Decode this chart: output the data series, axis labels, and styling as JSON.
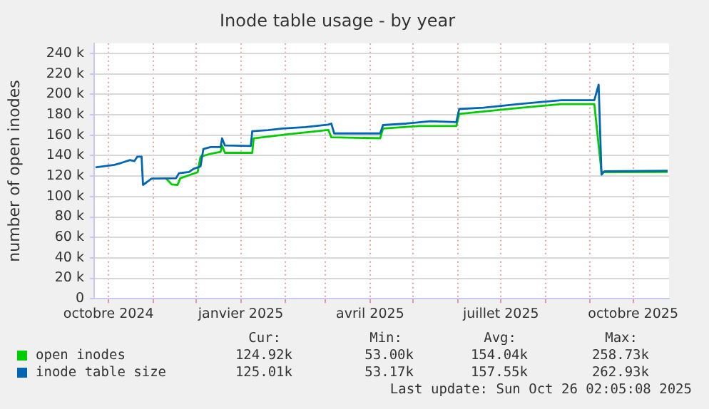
{
  "chart_data": {
    "type": "line",
    "title": "Inode table usage - by year",
    "ylabel": "number of open inodes",
    "xlim": [
      "2024-09-21",
      "2025-10-26"
    ],
    "xticks": [
      {
        "value": "2024-10-01",
        "label": "octobre 2024"
      },
      {
        "value": "2024-11-01",
        "label": null
      },
      {
        "value": "2024-12-01",
        "label": null
      },
      {
        "value": "2025-01-01",
        "label": "janvier 2025"
      },
      {
        "value": "2025-02-01",
        "label": null
      },
      {
        "value": "2025-03-01",
        "label": null
      },
      {
        "value": "2025-04-01",
        "label": "avril 2025"
      },
      {
        "value": "2025-05-01",
        "label": null
      },
      {
        "value": "2025-06-01",
        "label": null
      },
      {
        "value": "2025-07-01",
        "label": "juillet 2025"
      },
      {
        "value": "2025-08-01",
        "label": null
      },
      {
        "value": "2025-09-01",
        "label": null
      },
      {
        "value": "2025-10-01",
        "label": "octobre 2025"
      }
    ],
    "ylim": [
      0,
      250000
    ],
    "yticks": [
      0,
      {
        "value": 20000,
        "label": "20 k"
      },
      {
        "value": 40000,
        "label": "40 k"
      },
      {
        "value": 60000,
        "label": "60 k"
      },
      {
        "value": 80000,
        "label": "80 k"
      },
      {
        "value": 100000,
        "label": "100 k"
      },
      {
        "value": 120000,
        "label": "120 k"
      },
      {
        "value": 140000,
        "label": "140 k"
      },
      {
        "value": 160000,
        "label": "160 k"
      },
      {
        "value": 180000,
        "label": "180 k"
      },
      {
        "value": 200000,
        "label": "200 k"
      },
      {
        "value": 220000,
        "label": "220 k"
      },
      {
        "value": 240000,
        "label": "240 k"
      }
    ],
    "grid": true,
    "legend": "bottom",
    "marker": "none",
    "line_style": "solid",
    "series": [
      {
        "name": "open inodes",
        "color": "#00cc00",
        "x": [
          "2024-11-10",
          "2024-11-14",
          "2024-11-18",
          "2024-11-20",
          "2024-12-02",
          "2024-12-04",
          "2024-12-11",
          "2024-12-18",
          "2024-12-19",
          "2024-12-21",
          "2025-01-09",
          "2025-01-10",
          "2025-02-02",
          "2025-03-03",
          "2025-03-05",
          "2025-04-08",
          "2025-04-10",
          "2025-05-05",
          "2025-05-31",
          "2025-06-02",
          "2025-07-13",
          "2025-08-12",
          "2025-09-04",
          "2025-09-09",
          "2025-10-25"
        ],
        "values": [
          117600,
          111900,
          111400,
          118000,
          123800,
          139000,
          141900,
          143800,
          150000,
          142800,
          142800,
          157000,
          160900,
          165200,
          158000,
          157100,
          166600,
          169000,
          169000,
          180900,
          186600,
          190500,
          190500,
          123800,
          124000
        ]
      },
      {
        "name": "inode table size",
        "color": "#0066b3",
        "x": [
          "2024-09-22",
          "2024-10-05",
          "2024-10-10",
          "2024-10-16",
          "2024-10-19",
          "2024-10-21",
          "2024-10-24",
          "2024-10-25",
          "2024-10-31",
          "2024-11-17",
          "2024-11-19",
          "2024-11-26",
          "2024-11-29",
          "2024-12-04",
          "2024-12-06",
          "2024-12-11",
          "2024-12-18",
          "2024-12-19",
          "2024-12-21",
          "2025-01-08",
          "2025-01-09",
          "2025-01-20",
          "2025-01-30",
          "2025-02-15",
          "2025-03-03",
          "2025-03-05",
          "2025-03-07",
          "2025-04-08",
          "2025-04-10",
          "2025-04-26",
          "2025-05-13",
          "2025-05-31",
          "2025-06-02",
          "2025-06-19",
          "2025-07-13",
          "2025-08-12",
          "2025-09-04",
          "2025-09-07",
          "2025-09-09",
          "2025-09-11",
          "2025-10-25"
        ],
        "values": [
          128600,
          131000,
          133000,
          135700,
          134700,
          139000,
          139000,
          111400,
          117600,
          118000,
          122800,
          124000,
          127000,
          129500,
          146600,
          148500,
          148500,
          157000,
          150000,
          149500,
          164000,
          165000,
          166600,
          168000,
          170400,
          171400,
          161800,
          161800,
          170000,
          171400,
          173800,
          172900,
          185700,
          187000,
          190500,
          194300,
          194300,
          209500,
          121400,
          124800,
          125300
        ]
      }
    ],
    "annotations": [
      "Cur:",
      "Min:",
      "Avg:",
      "Max:",
      "124.92k",
      "53.00k",
      "154.04k",
      "258.73k",
      "125.01k",
      "53.17k",
      "157.55k",
      "262.93k",
      "Last update: Sun Oct 26 02:05:08 2025"
    ]
  }
}
